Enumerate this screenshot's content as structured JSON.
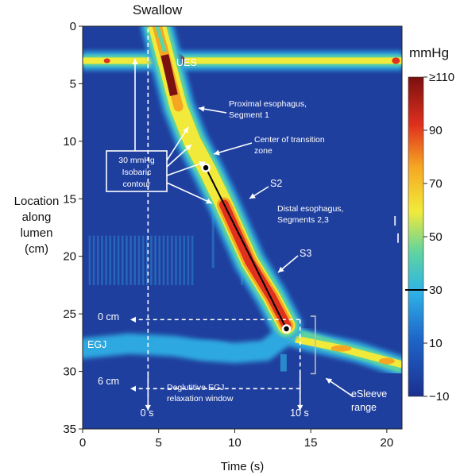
{
  "chart_data": {
    "type": "heatmap",
    "title": "Swallow",
    "xlabel": "Time (s)",
    "ylabel_lines": [
      "Location",
      "along",
      "lumen",
      "(cm)"
    ],
    "xlim": [
      0,
      21
    ],
    "ylim": [
      35,
      0
    ],
    "x_ticks": [
      0,
      5,
      10,
      15,
      20
    ],
    "y_ticks": [
      0,
      5,
      10,
      15,
      20,
      25,
      30,
      35
    ],
    "colorbar": {
      "title": "mmHg",
      "range": [
        -10,
        110
      ],
      "ticks": [
        {
          "value": 110,
          "label": "≥110"
        },
        {
          "value": 90,
          "label": "90"
        },
        {
          "value": 70,
          "label": "70"
        },
        {
          "value": 50,
          "label": "50"
        },
        {
          "value": 30,
          "label": "30"
        },
        {
          "value": 10,
          "label": "10"
        },
        {
          "value": -10,
          "label": "−10"
        }
      ],
      "marked_value": 30
    },
    "ues_band": {
      "location_cm": 3,
      "label": "UES"
    },
    "egj_band": {
      "start_location_cm": 25,
      "end_location_cm": 29,
      "label": "EGJ"
    },
    "contraction_path": [
      {
        "t": 4.9,
        "loc": 0
      },
      {
        "t": 5.5,
        "loc": 3
      },
      {
        "t": 6.3,
        "loc": 7
      },
      {
        "t": 7.2,
        "loc": 10
      },
      {
        "t": 8.2,
        "loc": 12.5
      },
      {
        "t": 9.3,
        "loc": 15.5
      },
      {
        "t": 11.0,
        "loc": 20.5
      },
      {
        "t": 12.4,
        "loc": 23.5
      },
      {
        "t": 13.4,
        "loc": 26
      },
      {
        "t": 15.0,
        "loc": 27.5
      },
      {
        "t": 18.0,
        "loc": 28.5
      },
      {
        "t": 21.0,
        "loc": 29.5
      }
    ],
    "dcl_line": {
      "start": {
        "t": 8.1,
        "loc": 12.3
      },
      "end": {
        "t": 13.4,
        "loc": 26.3
      }
    },
    "annotations": {
      "ues": "UES",
      "proximal": [
        "Proximal esophagus,",
        "Segment 1"
      ],
      "transition": [
        "Center of transition",
        "zone"
      ],
      "isobaric": [
        "30 mmHg",
        "Isobaric",
        "contour"
      ],
      "s2": "S2",
      "distal": [
        "Distal esophagus,",
        "Segments 2,3"
      ],
      "s3": "S3",
      "zero_cm": "0 cm",
      "six_cm": "6 cm",
      "egj": "EGJ",
      "relaxation": [
        "Deglutitive EGJ",
        "relaxation window"
      ],
      "zero_s": "0 s",
      "ten_s": "10 s",
      "esleeve": [
        "eSleeve",
        "range"
      ]
    },
    "swallow_marker_t": 4.3,
    "relaxation_window": {
      "start_t": 4.3,
      "end_t": 14.3,
      "top_loc": 25.5,
      "bottom_loc": 31.5
    }
  }
}
